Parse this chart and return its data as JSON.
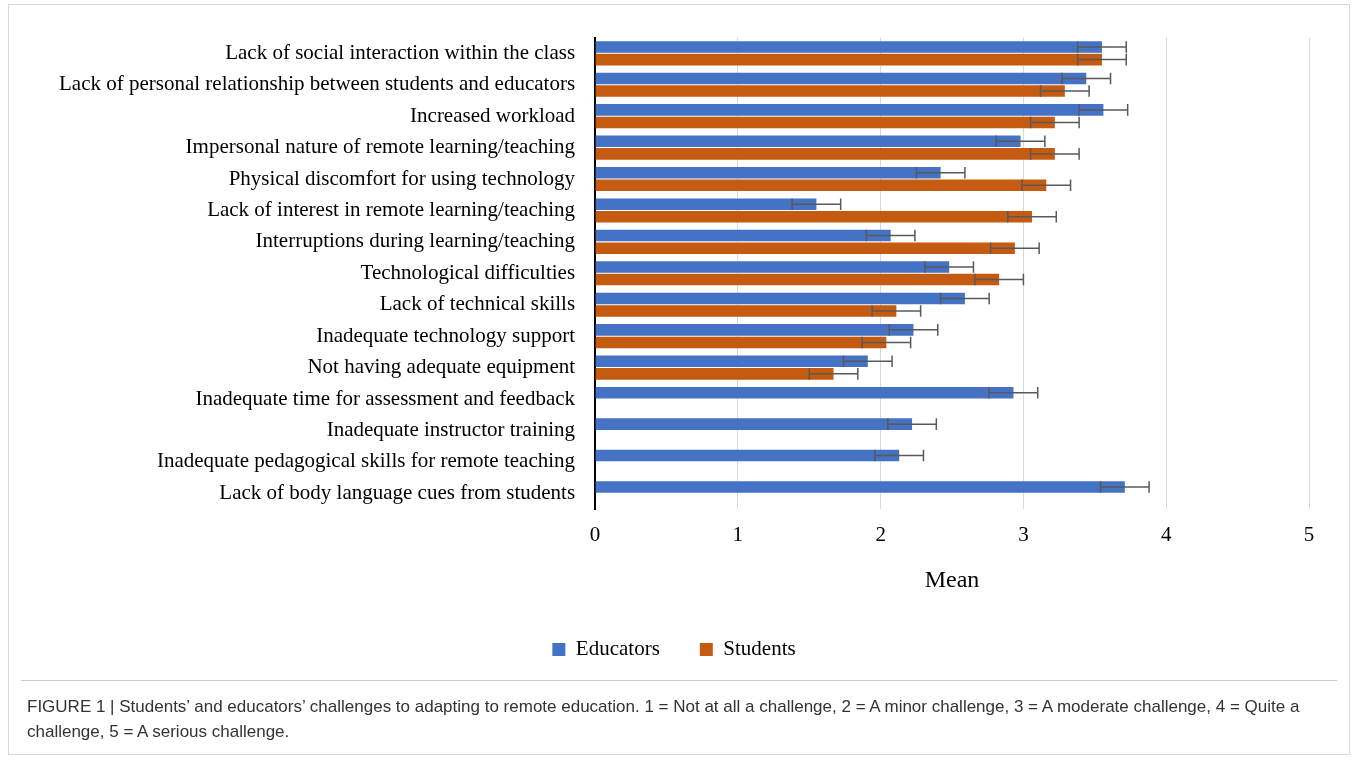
{
  "chart_data": {
    "type": "bar",
    "orientation": "horizontal",
    "categories": [
      "Lack of social interaction within the class",
      "Lack of personal relationship between students and educators",
      "Increased workload",
      "Impersonal nature of remote learning/teaching",
      "Physical discomfort for using technology",
      "Lack of interest in remote learning/teaching",
      "Interruptions during learning/teaching",
      "Technological difficulties",
      "Lack of technical skills",
      "Inadequate technology support",
      "Not having adequate equipment",
      "Inadequate time for assessment and feedback",
      "Inadequate instructor training",
      "Inadequate pedagogical skills for remote teaching",
      "Lack of body language cues from students"
    ],
    "series": [
      {
        "name": "Educators",
        "color": "#4472c4",
        "values": [
          3.55,
          3.44,
          3.56,
          2.98,
          2.42,
          1.55,
          2.07,
          2.48,
          2.59,
          2.23,
          1.91,
          2.93,
          2.22,
          2.13,
          3.71
        ],
        "errors": [
          0.17,
          0.17,
          0.17,
          0.17,
          0.17,
          0.17,
          0.17,
          0.17,
          0.17,
          0.17,
          0.17,
          0.17,
          0.17,
          0.17,
          0.17
        ]
      },
      {
        "name": "Students",
        "color": "#c55a11",
        "values": [
          3.55,
          3.29,
          3.22,
          3.22,
          3.16,
          3.06,
          2.94,
          2.83,
          2.11,
          2.04,
          1.67,
          null,
          null,
          null,
          null
        ],
        "errors": [
          0.17,
          0.17,
          0.17,
          0.17,
          0.17,
          0.17,
          0.17,
          0.17,
          0.17,
          0.17,
          0.17,
          null,
          null,
          null,
          null
        ]
      }
    ],
    "xlabel": "Mean",
    "xlim": [
      0,
      5
    ],
    "xticks": [
      0,
      1,
      2,
      3,
      4,
      5
    ],
    "grid": "x",
    "legend": "bottom",
    "annotations": [
      "FIGURE 1 | Students’ and educators’ challenges to adapting to remote education. 1 = Not at all a challenge, 2 = A minor challenge, 3 = A moderate challenge, 4 = Quite a challenge, 5 = A serious challenge."
    ]
  }
}
